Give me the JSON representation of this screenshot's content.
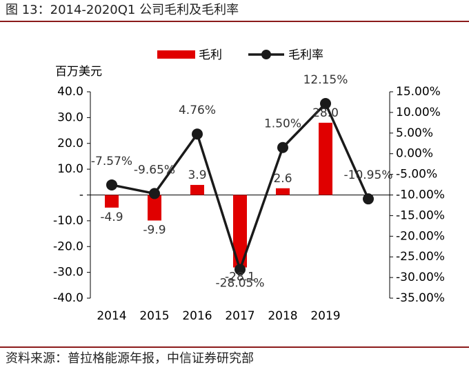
{
  "title": "图 13：2014-2020Q1 公司毛利及毛利率",
  "source": "资料来源：普拉格能源年报，中信证券研究部",
  "chart_data": {
    "type": "bar_line",
    "y_label": "百万美元",
    "categories": [
      "2014",
      "2015",
      "2016",
      "2017",
      "2018",
      "2019",
      null
    ],
    "series": [
      {
        "name": "毛利",
        "type": "bar",
        "color": "#e00000",
        "values": [
          -4.9,
          -9.9,
          3.9,
          -28.1,
          2.6,
          28.0,
          null
        ],
        "value_labels": [
          "-4.9",
          "-9.9",
          "3.9",
          "-28.1",
          "2.6",
          "28.0",
          null
        ]
      },
      {
        "name": "毛利率",
        "type": "line",
        "axis": "y2",
        "color": "#1a1a1a",
        "values": [
          -7.57,
          -9.65,
          4.76,
          -28.05,
          1.5,
          12.15,
          -10.95
        ],
        "value_labels": [
          "-7.57%",
          "-9.65%",
          "4.76%",
          "-28.05%",
          "1.50%",
          "12.15%",
          "-10.95%"
        ]
      }
    ],
    "ylim": [
      -40,
      40
    ],
    "yticks": [
      {
        "value": 40,
        "label": "40.0"
      },
      {
        "value": 30,
        "label": "30.0"
      },
      {
        "value": 20,
        "label": "20.0"
      },
      {
        "value": 10,
        "label": "10.0"
      },
      {
        "value": 0,
        "label": "-"
      },
      {
        "value": -10,
        "label": "-10.0"
      },
      {
        "value": -20,
        "label": "-20.0"
      },
      {
        "value": -30,
        "label": "-30.0"
      },
      {
        "value": -40,
        "label": "-40.0"
      }
    ],
    "y2lim": [
      -35,
      15
    ],
    "y2ticks": [
      {
        "value": 15,
        "label": "15.00%"
      },
      {
        "value": 10,
        "label": "10.00%"
      },
      {
        "value": 5,
        "label": "5.00%"
      },
      {
        "value": 0,
        "label": "0.00%"
      },
      {
        "value": -5,
        "label": "-5.00%"
      },
      {
        "value": -10,
        "label": "-10.00%"
      },
      {
        "value": -15,
        "label": "-15.00%"
      },
      {
        "value": -20,
        "label": "-20.00%"
      },
      {
        "value": -25,
        "label": "-25.00%"
      },
      {
        "value": -30,
        "label": "-30.00%"
      },
      {
        "value": -35,
        "label": "-35.00%"
      }
    ],
    "legend": "top"
  }
}
